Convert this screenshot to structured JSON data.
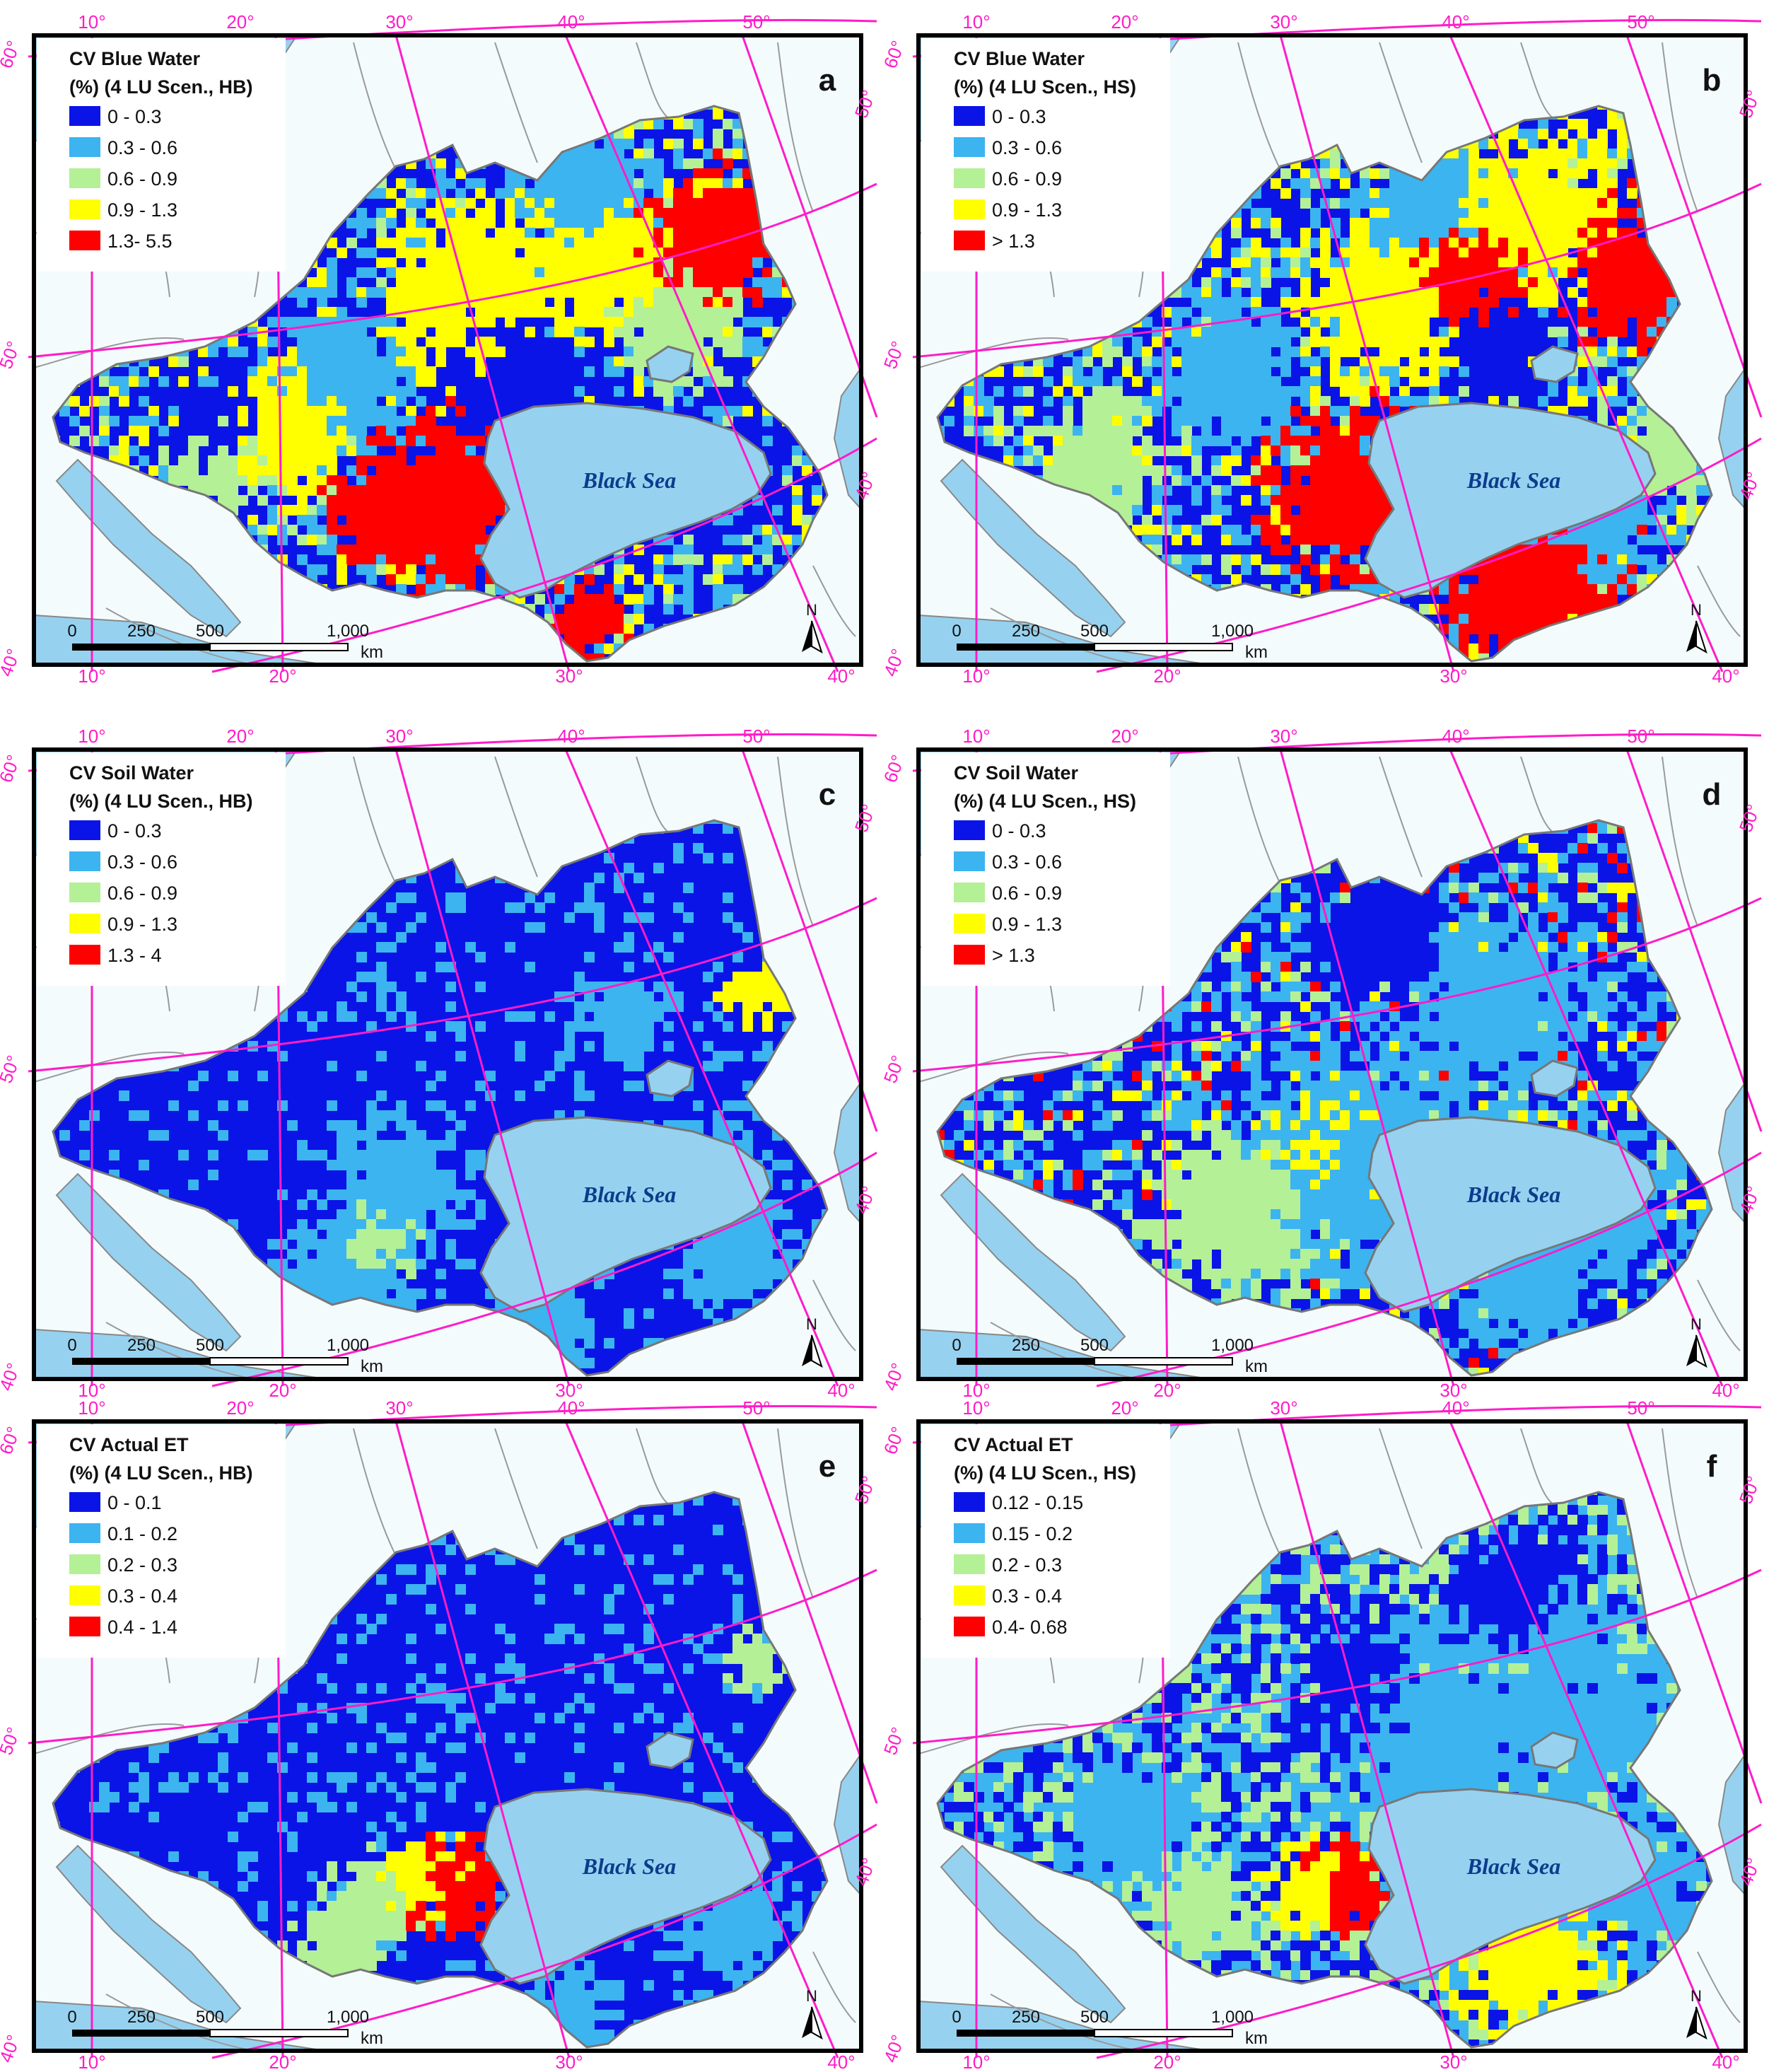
{
  "sea_label": "Black Sea",
  "scale": {
    "ticks": [
      "0",
      "250",
      "500",
      "1,000"
    ],
    "unit": "km"
  },
  "north_label": "N",
  "graticule": {
    "top": [
      "10°",
      "20°",
      "30°",
      "40°",
      "50°"
    ],
    "bottom": [
      "10°",
      "20°",
      "30°",
      "40°"
    ],
    "left": [
      "60°",
      "50°",
      "40°"
    ],
    "right": [
      "50°",
      "40°"
    ]
  },
  "colors": {
    "class1": "#0a14e6",
    "class2": "#3cb4f0",
    "class3": "#b4f096",
    "class4": "#ffff00",
    "class5": "#ff0000",
    "sea": "#96d2f0",
    "background": "#e8f8fc",
    "land": "#f4fbfd",
    "graticule": "#ff1cc8",
    "frame": "#000000"
  },
  "panels": [
    {
      "letter": "a",
      "legend_title": [
        "CV Blue Water",
        "(%) (4 LU Scen., HB)"
      ],
      "classes": [
        "0 - 0.3",
        "0.3 - 0.6",
        "0.6 - 0.9",
        "0.9 - 1.3",
        "1.3- 5.5"
      ]
    },
    {
      "letter": "b",
      "legend_title": [
        "CV Blue Water",
        "(%) (4 LU Scen., HS)"
      ],
      "classes": [
        "0 - 0.3",
        "0.3 - 0.6",
        "0.6 - 0.9",
        "0.9 - 1.3",
        "> 1.3"
      ]
    },
    {
      "letter": "c",
      "legend_title": [
        "CV Soil Water",
        "(%) (4 LU Scen., HB)"
      ],
      "classes": [
        "0 - 0.3",
        "0.3 - 0.6",
        "0.6 - 0.9",
        "0.9 - 1.3",
        "1.3 - 4"
      ]
    },
    {
      "letter": "d",
      "legend_title": [
        "CV Soil Water",
        "(%) (4 LU Scen., HS)"
      ],
      "classes": [
        "0 - 0.3",
        "0.3 - 0.6",
        "0.6 - 0.9",
        "0.9 - 1.3",
        "> 1.3"
      ]
    },
    {
      "letter": "e",
      "legend_title": [
        "CV Actual ET",
        "(%) (4 LU Scen., HB)"
      ],
      "classes": [
        "0 - 0.1",
        "0.1 - 0.2",
        "0.2 - 0.3",
        "0.3 - 0.4",
        "0.4 - 1.4"
      ]
    },
    {
      "letter": "f",
      "legend_title": [
        "CV Actual ET",
        "(%) (4 LU Scen., HS)"
      ],
      "classes": [
        "0.12 - 0.15",
        "0.15 - 0.2",
        "0.2 - 0.3",
        "0.3 - 0.4",
        "0.4- 0.68"
      ]
    }
  ]
}
